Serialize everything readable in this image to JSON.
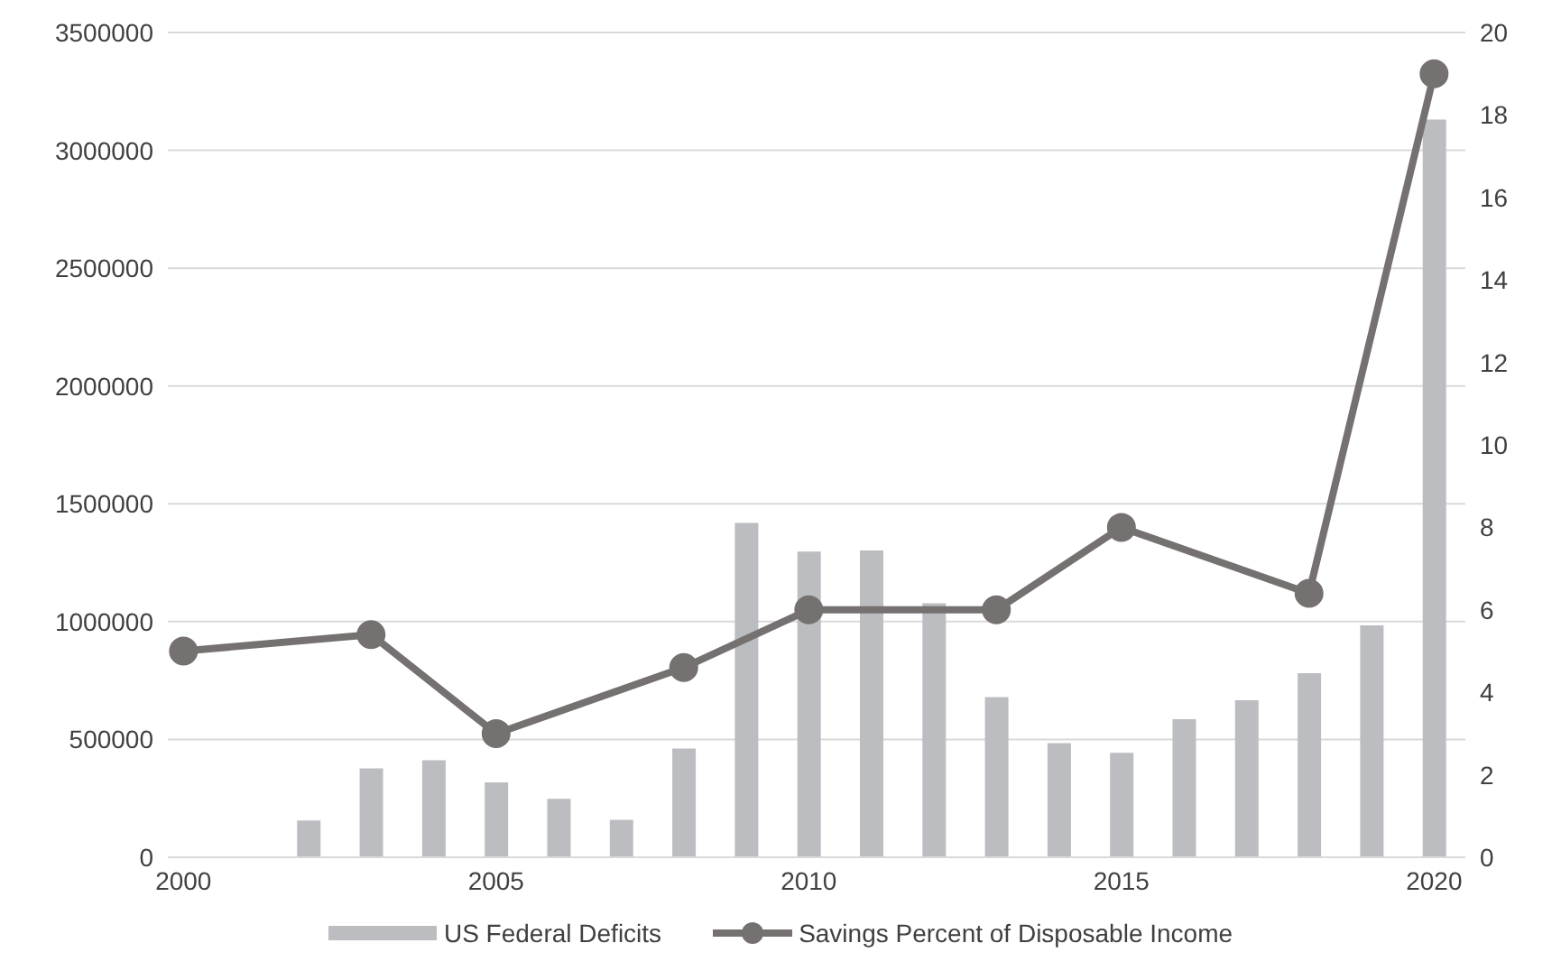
{
  "chart_data": {
    "type": "bar",
    "x": [
      2000,
      2001,
      2002,
      2003,
      2004,
      2005,
      2006,
      2007,
      2008,
      2009,
      2010,
      2011,
      2012,
      2013,
      2014,
      2015,
      2016,
      2017,
      2018,
      2019,
      2020
    ],
    "series": [
      {
        "name": "US Federal Deficits",
        "color": "#bcbdc0",
        "values": [
          null,
          null,
          156000,
          377000,
          412000,
          318000,
          248000,
          159000,
          461000,
          1419000,
          1297000,
          1302000,
          1078000,
          680000,
          484000,
          443000,
          586000,
          666000,
          781000,
          984000,
          3130000
        ]
      },
      {
        "name": "Savings Percent of Disposable Income",
        "type": "line",
        "axis": "y2",
        "color": "#767171",
        "values": [
          5.0,
          null,
          null,
          5.4,
          null,
          3.0,
          null,
          null,
          4.6,
          null,
          6.0,
          null,
          null,
          6.0,
          null,
          8.0,
          null,
          null,
          6.4,
          null,
          19.0
        ]
      }
    ],
    "xlim": [
      1999.75,
      2020.5
    ],
    "xticks": [
      2000,
      2005,
      2010,
      2015,
      2020
    ],
    "ylim": [
      0,
      3500000
    ],
    "yticks": [
      0,
      500000,
      1000000,
      1500000,
      2000000,
      2500000,
      3000000,
      3500000
    ],
    "y2lim": [
      0,
      20
    ],
    "y2ticks": [
      0,
      2,
      4,
      6,
      8,
      10,
      12,
      14,
      16,
      18,
      20
    ],
    "grid": "y",
    "legend": "bottom",
    "marker": "circle",
    "line_style": "solid"
  }
}
